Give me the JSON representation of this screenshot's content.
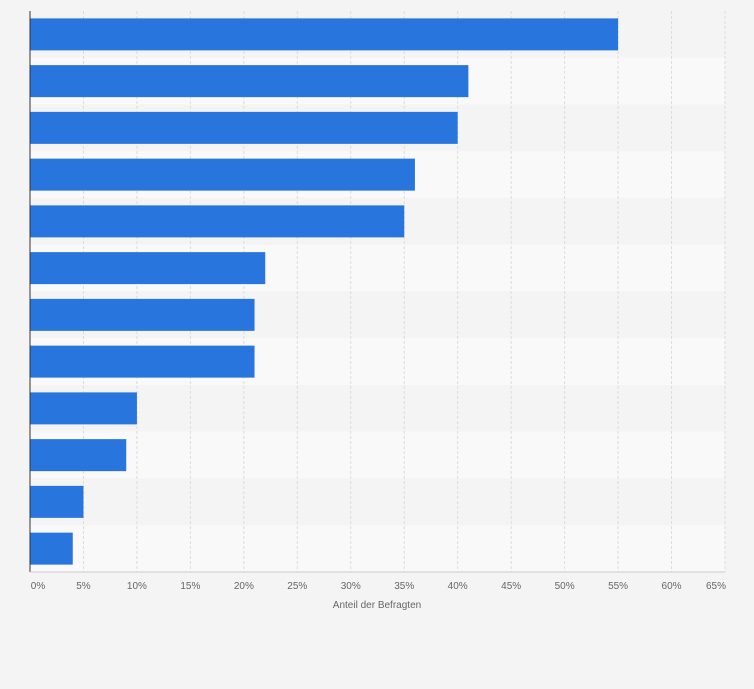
{
  "chart_data": {
    "type": "bar",
    "orientation": "horizontal",
    "title": "",
    "xlabel": "Anteil der Befragten",
    "ylabel": "",
    "categories": [
      "",
      "",
      "",
      "",
      "",
      "",
      "",
      "",
      "",
      "",
      "",
      ""
    ],
    "values": [
      55,
      41,
      40,
      36,
      35,
      22,
      21,
      21,
      10,
      9,
      5,
      4
    ],
    "xlim": [
      0,
      65
    ],
    "x_ticks": [
      0,
      5,
      10,
      15,
      20,
      25,
      30,
      35,
      40,
      45,
      50,
      55,
      60,
      65
    ],
    "x_tick_labels": [
      "0%",
      "5%",
      "10%",
      "15%",
      "20%",
      "25%",
      "30%",
      "35%",
      "40%",
      "45%",
      "50%",
      "55%",
      "60%",
      "65%"
    ],
    "grid": true,
    "bar_color": "#2876dd",
    "band_colors": [
      "#f4f4f4",
      "#f9f9f9"
    ],
    "grid_color": "#dcdcdc",
    "axis_color": "#333333"
  }
}
